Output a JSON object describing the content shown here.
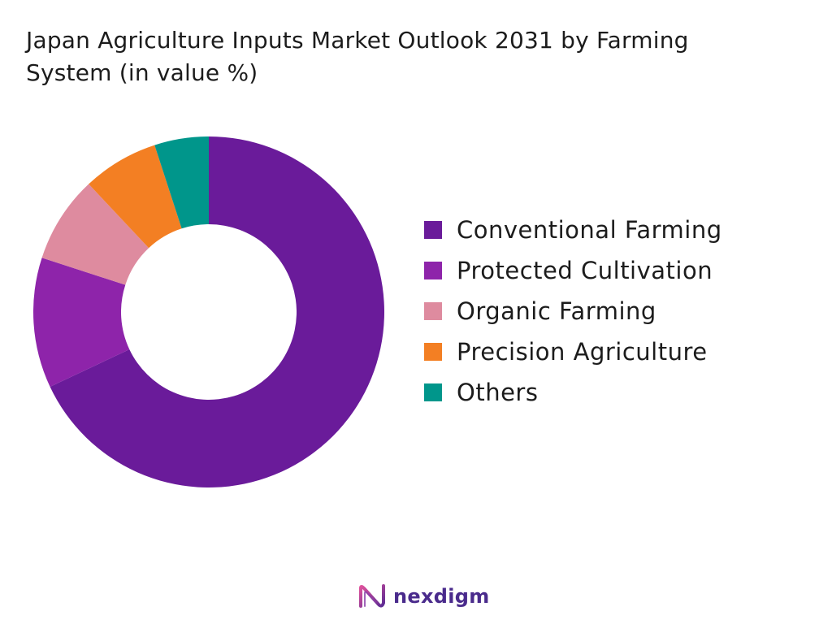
{
  "title": "Japan Agriculture Inputs Market Outlook 2031 by Farming System (in value %)",
  "chart_data": {
    "type": "pie",
    "donut": true,
    "title": "Japan Agriculture Inputs Market Outlook 2031 by Farming System (in value %)",
    "legend_position": "right",
    "series": [
      {
        "name": "Conventional Farming",
        "value": 68,
        "color": "#6a1b9a"
      },
      {
        "name": "Protected Cultivation",
        "value": 12,
        "color": "#8e24aa"
      },
      {
        "name": "Organic Farming",
        "value": 8,
        "color": "#de8b9f"
      },
      {
        "name": "Precision Agriculture",
        "value": 7,
        "color": "#f37f23"
      },
      {
        "name": "Others",
        "value": 5,
        "color": "#00968b"
      }
    ]
  },
  "brand": {
    "name": "nexdigm",
    "logo_icon": "nexdigm-logo-icon",
    "color": "#4a2b8c"
  }
}
